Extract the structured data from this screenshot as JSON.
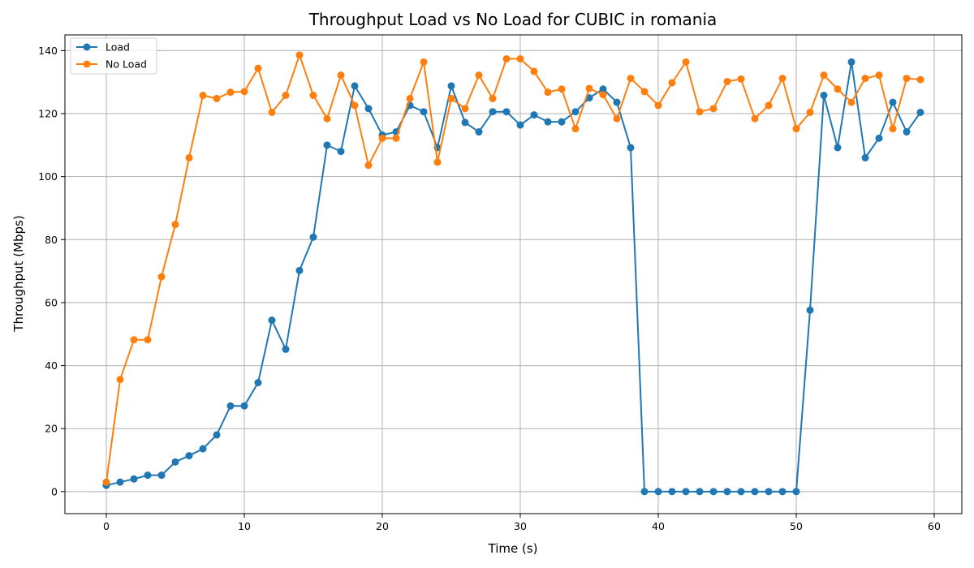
{
  "chart_data": {
    "type": "line",
    "title": "Throughput Load vs No Load for CUBIC in romania",
    "xlabel": "Time (s)",
    "ylabel": "Throughput (Mbps)",
    "xlim": [
      -3,
      62
    ],
    "ylim": [
      -7,
      145
    ],
    "xticks": [
      0,
      10,
      20,
      30,
      40,
      50,
      60
    ],
    "yticks": [
      0,
      20,
      40,
      60,
      80,
      100,
      120,
      140
    ],
    "grid": true,
    "legend_position": "top-left",
    "x": [
      0,
      1,
      2,
      3,
      4,
      5,
      6,
      7,
      8,
      9,
      10,
      11,
      12,
      13,
      14,
      15,
      16,
      17,
      18,
      19,
      20,
      21,
      22,
      23,
      24,
      25,
      26,
      27,
      28,
      29,
      30,
      31,
      32,
      33,
      34,
      35,
      36,
      37,
      38,
      39,
      40,
      41,
      42,
      43,
      44,
      45,
      46,
      47,
      48,
      49,
      50,
      51,
      52,
      53,
      54,
      55,
      56,
      57,
      58,
      59
    ],
    "series": [
      {
        "name": "Load",
        "color": "#1f77b4",
        "values": [
          2,
          3,
          4,
          5.2,
          5.2,
          9.4,
          11.4,
          13.6,
          18,
          27.2,
          27.2,
          34.6,
          54.4,
          45.2,
          70.2,
          80.8,
          110,
          108,
          128.8,
          121.6,
          113.2,
          114.2,
          122.6,
          120.6,
          109.2,
          128.8,
          117.2,
          114.2,
          120.6,
          120.6,
          116.4,
          119.6,
          117.4,
          117.4,
          120.6,
          125,
          127.8,
          123.6,
          109.2,
          0,
          0,
          0,
          0,
          0,
          0,
          0,
          0,
          0,
          0,
          0,
          0,
          57.6,
          125.8,
          109.2,
          136.4,
          106,
          112.2,
          123.6,
          114.2,
          120.4
        ]
      },
      {
        "name": "No Load",
        "color": "#ff7f0e",
        "values": [
          3,
          35.6,
          48.2,
          48.2,
          68.2,
          84.8,
          106,
          125.8,
          124.8,
          126.8,
          127,
          134.4,
          120.4,
          125.8,
          138.6,
          125.8,
          118.4,
          132.2,
          122.6,
          103.6,
          112.2,
          112.2,
          124.8,
          136.4,
          104.6,
          124.8,
          121.6,
          132.2,
          124.8,
          137.4,
          137.4,
          133.4,
          126.8,
          127.8,
          115.2,
          128,
          126,
          118.4,
          131.2,
          127,
          122.6,
          129.8,
          136.4,
          120.6,
          121.6,
          130.2,
          131,
          118.4,
          122.6,
          131.2,
          115.2,
          120.4,
          132.2,
          127.8,
          123.6,
          131.2,
          132.2,
          115.2,
          131.2,
          130.8
        ]
      }
    ]
  }
}
